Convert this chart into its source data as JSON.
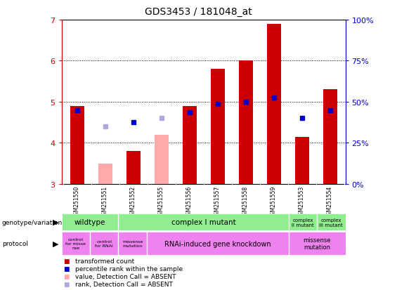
{
  "title": "GDS3453 / 181048_at",
  "samples": [
    "GSM251550",
    "GSM251551",
    "GSM251552",
    "GSM251555",
    "GSM251556",
    "GSM251557",
    "GSM251558",
    "GSM251559",
    "GSM251553",
    "GSM251554"
  ],
  "red_values": [
    4.9,
    null,
    3.8,
    null,
    4.9,
    5.8,
    6.0,
    6.9,
    4.15,
    5.3
  ],
  "pink_values": [
    null,
    3.5,
    null,
    4.2,
    null,
    null,
    null,
    null,
    null,
    null
  ],
  "blue_values": [
    4.8,
    null,
    4.5,
    null,
    4.75,
    4.95,
    5.0,
    5.1,
    4.6,
    4.8
  ],
  "lightblue_values": [
    null,
    4.4,
    null,
    4.6,
    null,
    null,
    null,
    null,
    null,
    null
  ],
  "ylim": [
    3.0,
    7.0
  ],
  "yticks_left": [
    3,
    4,
    5,
    6,
    7
  ],
  "yticks_right_vals": [
    3.0,
    4.0,
    5.0,
    6.0,
    7.0
  ],
  "yticks_right_labels": [
    "0%",
    "25%",
    "50%",
    "75%",
    "100%"
  ],
  "bar_width": 0.5,
  "bar_bottom": 3.0,
  "bg_color": "#ffffff",
  "red_color": "#cc0000",
  "pink_color": "#ffaaaa",
  "blue_color": "#0000cc",
  "lightblue_color": "#aaaadd",
  "gray_bg": "#c8c8c8",
  "green_bg": "#90ee90",
  "purple_bg": "#ee82ee",
  "label_fontsize": 5.5,
  "tick_fontsize": 8
}
